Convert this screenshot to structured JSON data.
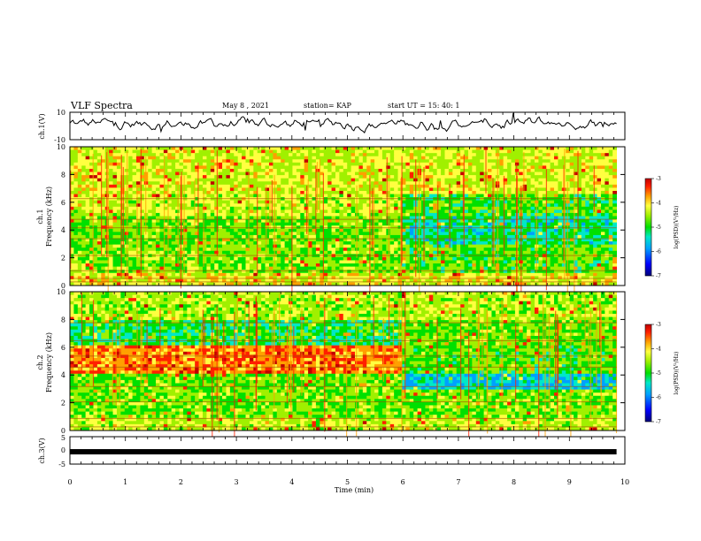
{
  "header": {
    "title": "VLF Spectra",
    "date": "May 8  , 2021",
    "station": "station= KAP",
    "start_ut": "start  UT =   15: 40: 1"
  },
  "chart_data": [
    {
      "type": "line",
      "name": "ch1-voltage",
      "ylabel": "ch.1(V)",
      "xlim": [
        0,
        10
      ],
      "ylim": [
        -10,
        10
      ],
      "yticklabels": [
        "10",
        "-10"
      ],
      "x_end": 9.85,
      "description_points": [
        0,
        3,
        -2,
        4,
        -1,
        5,
        -3,
        2,
        6,
        -4,
        3,
        1,
        -2,
        5,
        0,
        -3,
        4,
        2,
        -1,
        3
      ]
    },
    {
      "type": "heatmap",
      "name": "ch1-spectrogram",
      "ylabel": "ch.1\nFrequency (kHz)",
      "ylabel_line1": "ch.1",
      "ylabel_line2": "Frequency (kHz)",
      "xlim": [
        0,
        10
      ],
      "ylim": [
        0,
        10
      ],
      "yticklabels": [
        "0",
        "2",
        "4",
        "6",
        "8",
        "10"
      ],
      "change_time_min": 6,
      "data_end_min": 9.85,
      "color_scale": {
        "label": "log(PSD) (V²/Hz)",
        "label_text": "log(PSD)(V",
        "label_sup": "2",
        "label_end": "/Hz)",
        "ticks": [
          "-3",
          "-4",
          "-5",
          "-6",
          "-7"
        ],
        "range": [
          -7,
          -3
        ]
      }
    },
    {
      "type": "heatmap",
      "name": "ch2-spectrogram",
      "ylabel_line1": "ch.2",
      "ylabel_line2": "Frequency (kHz)",
      "xlim": [
        0,
        10
      ],
      "ylim": [
        0,
        10
      ],
      "yticklabels": [
        "0",
        "2",
        "4",
        "6",
        "8",
        "10"
      ],
      "change_time_min": 6,
      "data_end_min": 9.85,
      "color_scale": {
        "label_text": "log(PSD)(V",
        "label_sup": "2",
        "label_end": "/Hz)",
        "ticks": [
          "-3",
          "-4",
          "-5",
          "-6",
          "-7"
        ],
        "range": [
          -7,
          -3
        ]
      }
    },
    {
      "type": "line",
      "name": "ch3-voltage",
      "ylabel": "ch.3(V)",
      "xlim": [
        0,
        10
      ],
      "ylim": [
        -5,
        5
      ],
      "yticklabels": [
        "5",
        "0",
        "-5"
      ],
      "value_approx": -0.5,
      "x_end": 9.85
    }
  ],
  "xaxis": {
    "label": "Time  (min)",
    "ticklabels": [
      "0",
      "1",
      "2",
      "3",
      "4",
      "5",
      "6",
      "7",
      "8",
      "9",
      "10"
    ]
  },
  "colors": {
    "scale": [
      "#00007a",
      "#0000ff",
      "#00a0ff",
      "#00e8c8",
      "#00e000",
      "#a0f000",
      "#ffff40",
      "#ffa000",
      "#ff2000",
      "#c00000"
    ]
  }
}
